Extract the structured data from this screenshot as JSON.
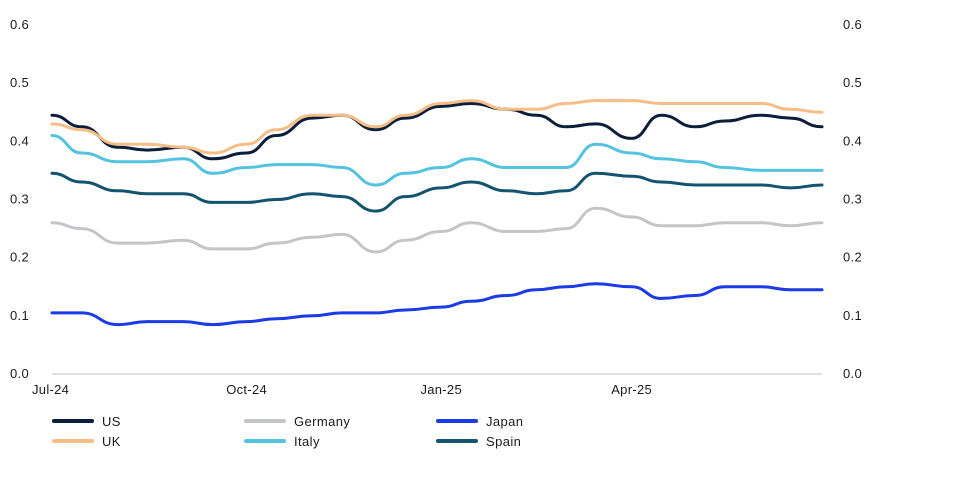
{
  "chart_data": {
    "type": "line",
    "title": "",
    "xlabel": "",
    "ylabel": "",
    "ylim": [
      0,
      0.6
    ],
    "yticks": [
      "0.0",
      "0.1",
      "0.2",
      "0.3",
      "0.4",
      "0.5",
      "0.6"
    ],
    "xticks": [
      {
        "date": "2024-07-01",
        "label": "Jul-24"
      },
      {
        "date": "2024-10-01",
        "label": "Oct-24"
      },
      {
        "date": "2025-01-01",
        "label": "Jan-25"
      },
      {
        "date": "2025-04-01",
        "label": "Apr-25"
      }
    ],
    "x_range": [
      "2024-07-01",
      "2025-06-30"
    ],
    "grid": false,
    "legend_position": "bottom",
    "x": [
      "2024-07-01",
      "2024-07-15",
      "2024-08-01",
      "2024-08-15",
      "2024-09-01",
      "2024-09-15",
      "2024-10-01",
      "2024-10-15",
      "2024-11-01",
      "2024-11-15",
      "2024-12-01",
      "2024-12-15",
      "2025-01-01",
      "2025-01-15",
      "2025-02-01",
      "2025-02-15",
      "2025-03-01",
      "2025-03-15",
      "2025-04-01",
      "2025-04-15",
      "2025-05-01",
      "2025-05-15",
      "2025-06-01",
      "2025-06-15",
      "2025-06-30"
    ],
    "series": [
      {
        "name": "US",
        "color": "#0b1f3a",
        "values": [
          0.445,
          0.425,
          0.39,
          0.385,
          0.39,
          0.37,
          0.38,
          0.41,
          0.44,
          0.445,
          0.42,
          0.44,
          0.46,
          0.465,
          0.455,
          0.445,
          0.425,
          0.43,
          0.405,
          0.445,
          0.425,
          0.435,
          0.445,
          0.44,
          0.425
        ]
      },
      {
        "name": "UK",
        "color": "#f6bd86",
        "values": [
          0.43,
          0.42,
          0.395,
          0.395,
          0.39,
          0.38,
          0.395,
          0.42,
          0.445,
          0.445,
          0.425,
          0.445,
          0.465,
          0.47,
          0.455,
          0.455,
          0.465,
          0.47,
          0.47,
          0.465,
          0.465,
          0.465,
          0.465,
          0.455,
          0.45
        ]
      },
      {
        "name": "Germany",
        "color": "#c3c5c9",
        "values": [
          0.26,
          0.25,
          0.225,
          0.225,
          0.23,
          0.215,
          0.215,
          0.225,
          0.235,
          0.24,
          0.21,
          0.23,
          0.245,
          0.26,
          0.245,
          0.245,
          0.25,
          0.285,
          0.27,
          0.255,
          0.255,
          0.26,
          0.26,
          0.255,
          0.26
        ]
      },
      {
        "name": "Italy",
        "color": "#54c3e0",
        "values": [
          0.41,
          0.38,
          0.365,
          0.365,
          0.37,
          0.345,
          0.355,
          0.36,
          0.36,
          0.355,
          0.325,
          0.345,
          0.355,
          0.37,
          0.355,
          0.355,
          0.355,
          0.395,
          0.38,
          0.37,
          0.365,
          0.355,
          0.35,
          0.35,
          0.35
        ]
      },
      {
        "name": "Spain",
        "color": "#14546e",
        "values": [
          0.345,
          0.33,
          0.315,
          0.31,
          0.31,
          0.295,
          0.295,
          0.3,
          0.31,
          0.305,
          0.28,
          0.305,
          0.32,
          0.33,
          0.315,
          0.31,
          0.315,
          0.345,
          0.34,
          0.33,
          0.325,
          0.325,
          0.325,
          0.32,
          0.325
        ]
      },
      {
        "name": "Japan",
        "color": "#1a3be6",
        "values": [
          0.105,
          0.105,
          0.085,
          0.09,
          0.09,
          0.085,
          0.09,
          0.095,
          0.1,
          0.105,
          0.105,
          0.11,
          0.115,
          0.125,
          0.135,
          0.145,
          0.15,
          0.155,
          0.15,
          0.13,
          0.135,
          0.15,
          0.15,
          0.145,
          0.145
        ]
      }
    ]
  },
  "legend": [
    {
      "label": "US",
      "color": "#0b1f3a"
    },
    {
      "label": "Germany",
      "color": "#c3c5c9"
    },
    {
      "label": "Japan",
      "color": "#1a3be6"
    },
    {
      "label": "UK",
      "color": "#f6bd86"
    },
    {
      "label": "Italy",
      "color": "#54c3e0"
    },
    {
      "label": "Spain",
      "color": "#14546e"
    }
  ]
}
